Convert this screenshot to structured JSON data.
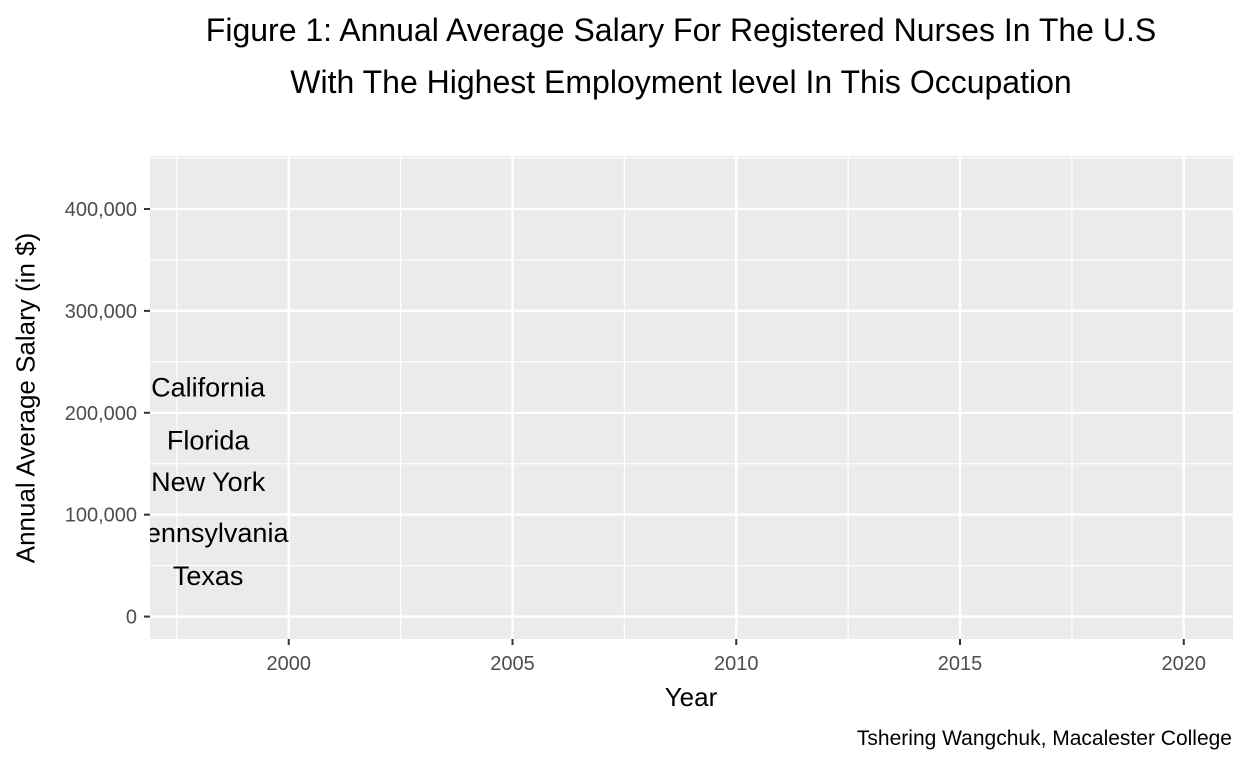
{
  "chart_data": {
    "type": "line",
    "title": "Figure 1: Annual Average Salary For Registered Nurses In The U.S",
    "subtitle": "With The Highest Employment level In This Occupation",
    "xlabel": "Year",
    "ylabel": "Annual Average Salary (in $)",
    "caption": "Tshering Wangchuk, Macalester College",
    "xlim": [
      1996.9,
      2021.1
    ],
    "ylim": [
      -22000,
      452000
    ],
    "x_ticks": [
      2000,
      2005,
      2010,
      2015,
      2020
    ],
    "x_tick_labels": [
      "2000",
      "2005",
      "2010",
      "2015",
      "2020"
    ],
    "y_ticks": [
      0,
      100000,
      200000,
      300000,
      400000
    ],
    "y_tick_labels": [
      "0",
      "100,000",
      "200,000",
      "300,000",
      "400,000"
    ],
    "grid": true,
    "panel_background": "#ebebeb",
    "grid_color": "#ffffff",
    "annotations": [
      {
        "text": "California",
        "x": 1998.2,
        "y": 225000
      },
      {
        "text": "Florida",
        "x": 1998.2,
        "y": 173000
      },
      {
        "text": "New York",
        "x": 1998.2,
        "y": 132000
      },
      {
        "text": "Pennsylvania",
        "x": 1998.2,
        "y": 82000
      },
      {
        "text": "Texas",
        "x": 1998.2,
        "y": 40000
      }
    ]
  }
}
